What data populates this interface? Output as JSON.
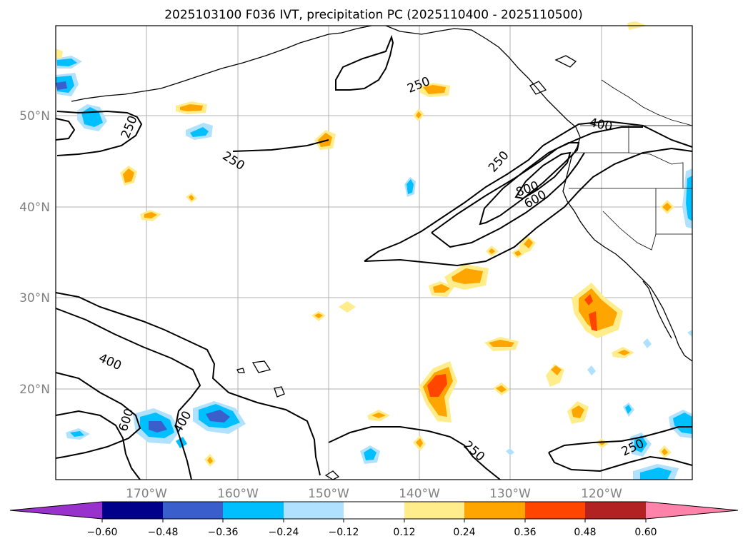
{
  "title": "2025103100 F036 IVT, precipitation PC (2025110400 - 2025110500)",
  "lat_ticks": [
    "50°N",
    "40°N",
    "30°N",
    "20°N"
  ],
  "lon_ticks": [
    "170°W",
    "160°W",
    "150°W",
    "140°W",
    "130°W",
    "120°W"
  ],
  "colorbar": {
    "ticks": [
      "−0.60",
      "−0.48",
      "−0.36",
      "−0.24",
      "−0.12",
      "0.12",
      "0.24",
      "0.36",
      "0.48",
      "0.60"
    ],
    "colors": [
      "#9932cc",
      "#00008b",
      "#3a5fcd",
      "#00bfff",
      "#b0e2ff",
      "#ffffff",
      "#ffec8b",
      "#ffa500",
      "#ff4500",
      "#b22222",
      "#ff82ab"
    ]
  },
  "contour_labels": {
    "c1": "250",
    "c2": "250",
    "c3": "250",
    "c4": "250",
    "c5": "400",
    "c6": "800",
    "c7": "600",
    "c8": "400",
    "c9": "600",
    "c10": "400",
    "c11": "250",
    "c12": "250"
  },
  "colors": {
    "positive_light": "#ffec8b",
    "positive_mid": "#ffa500",
    "positive_high": "#ff4500",
    "negative_light": "#b0e2ff",
    "negative_mid": "#00bfff",
    "negative_high": "#3a5fcd"
  }
}
